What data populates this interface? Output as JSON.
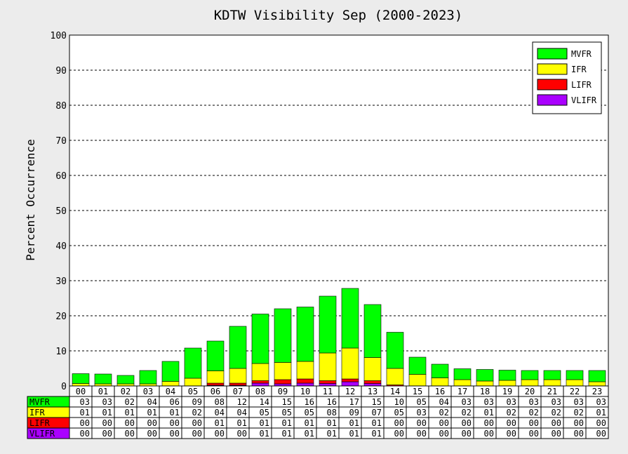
{
  "chart_data": {
    "type": "bar",
    "title": "KDTW Visibility Sep (2000-2023)",
    "ylabel": "Percent Occurrence",
    "xlabel": "",
    "ylim": [
      0,
      100
    ],
    "yticks": [
      0,
      10,
      20,
      30,
      40,
      50,
      60,
      70,
      80,
      90,
      100
    ],
    "grid": "horizontal-dashed",
    "legend_position": "top-right",
    "stacked": true,
    "categories": [
      "00",
      "01",
      "02",
      "03",
      "04",
      "05",
      "06",
      "07",
      "08",
      "09",
      "10",
      "11",
      "12",
      "13",
      "14",
      "15",
      "16",
      "17",
      "18",
      "19",
      "20",
      "21",
      "22",
      "23"
    ],
    "series": [
      {
        "name": "VLIFR",
        "color": "#aa00ff",
        "values": [
          0,
          0,
          0,
          0,
          0,
          0,
          0.2,
          0.2,
          0.8,
          0.6,
          0.8,
          0.7,
          1.2,
          0.7,
          0,
          0,
          0,
          0,
          0,
          0,
          0,
          0,
          0,
          0
        ],
        "table": [
          "00",
          "00",
          "00",
          "00",
          "00",
          "00",
          "00",
          "00",
          "01",
          "01",
          "01",
          "01",
          "01",
          "01",
          "00",
          "00",
          "00",
          "00",
          "00",
          "00",
          "00",
          "00",
          "00",
          "00"
        ]
      },
      {
        "name": "LIFR",
        "color": "#ff0000",
        "values": [
          0,
          0,
          0,
          0,
          0,
          0,
          0.6,
          0.6,
          0.7,
          1.2,
          1.2,
          0.8,
          0.8,
          0.8,
          0.3,
          0,
          0,
          0,
          0,
          0,
          0,
          0,
          0,
          0
        ],
        "table": [
          "00",
          "00",
          "00",
          "00",
          "00",
          "00",
          "01",
          "01",
          "01",
          "01",
          "01",
          "01",
          "01",
          "01",
          "00",
          "00",
          "00",
          "00",
          "00",
          "00",
          "00",
          "00",
          "00",
          "00"
        ]
      },
      {
        "name": "IFR",
        "color": "#ffff00",
        "values": [
          0.7,
          0.6,
          0.6,
          0.6,
          1.3,
          2.2,
          3.5,
          4.2,
          4.9,
          4.9,
          5.0,
          7.9,
          8.8,
          6.6,
          4.7,
          3.3,
          2.3,
          1.8,
          1.4,
          1.6,
          1.8,
          1.8,
          1.8,
          1.2
        ],
        "table": [
          "01",
          "01",
          "01",
          "01",
          "01",
          "02",
          "04",
          "04",
          "05",
          "05",
          "05",
          "08",
          "09",
          "07",
          "05",
          "03",
          "02",
          "02",
          "01",
          "02",
          "02",
          "02",
          "02",
          "01"
        ]
      },
      {
        "name": "MVFR",
        "color": "#00ff00",
        "values": [
          2.8,
          2.8,
          2.4,
          3.8,
          5.7,
          8.6,
          8.5,
          12.0,
          14.1,
          15.3,
          15.5,
          16.2,
          17.0,
          15.1,
          10.3,
          4.9,
          3.9,
          3.1,
          3.3,
          2.9,
          2.6,
          2.6,
          2.6,
          3.2
        ],
        "table": [
          "03",
          "03",
          "02",
          "04",
          "06",
          "09",
          "08",
          "12",
          "14",
          "15",
          "16",
          "16",
          "17",
          "15",
          "10",
          "05",
          "04",
          "03",
          "03",
          "03",
          "03",
          "03",
          "03",
          "03"
        ]
      }
    ],
    "legend": [
      "MVFR",
      "IFR",
      "LIFR",
      "VLIFR"
    ],
    "table_rows": [
      "MVFR",
      "IFR",
      "LIFR",
      "VLIFR"
    ]
  }
}
